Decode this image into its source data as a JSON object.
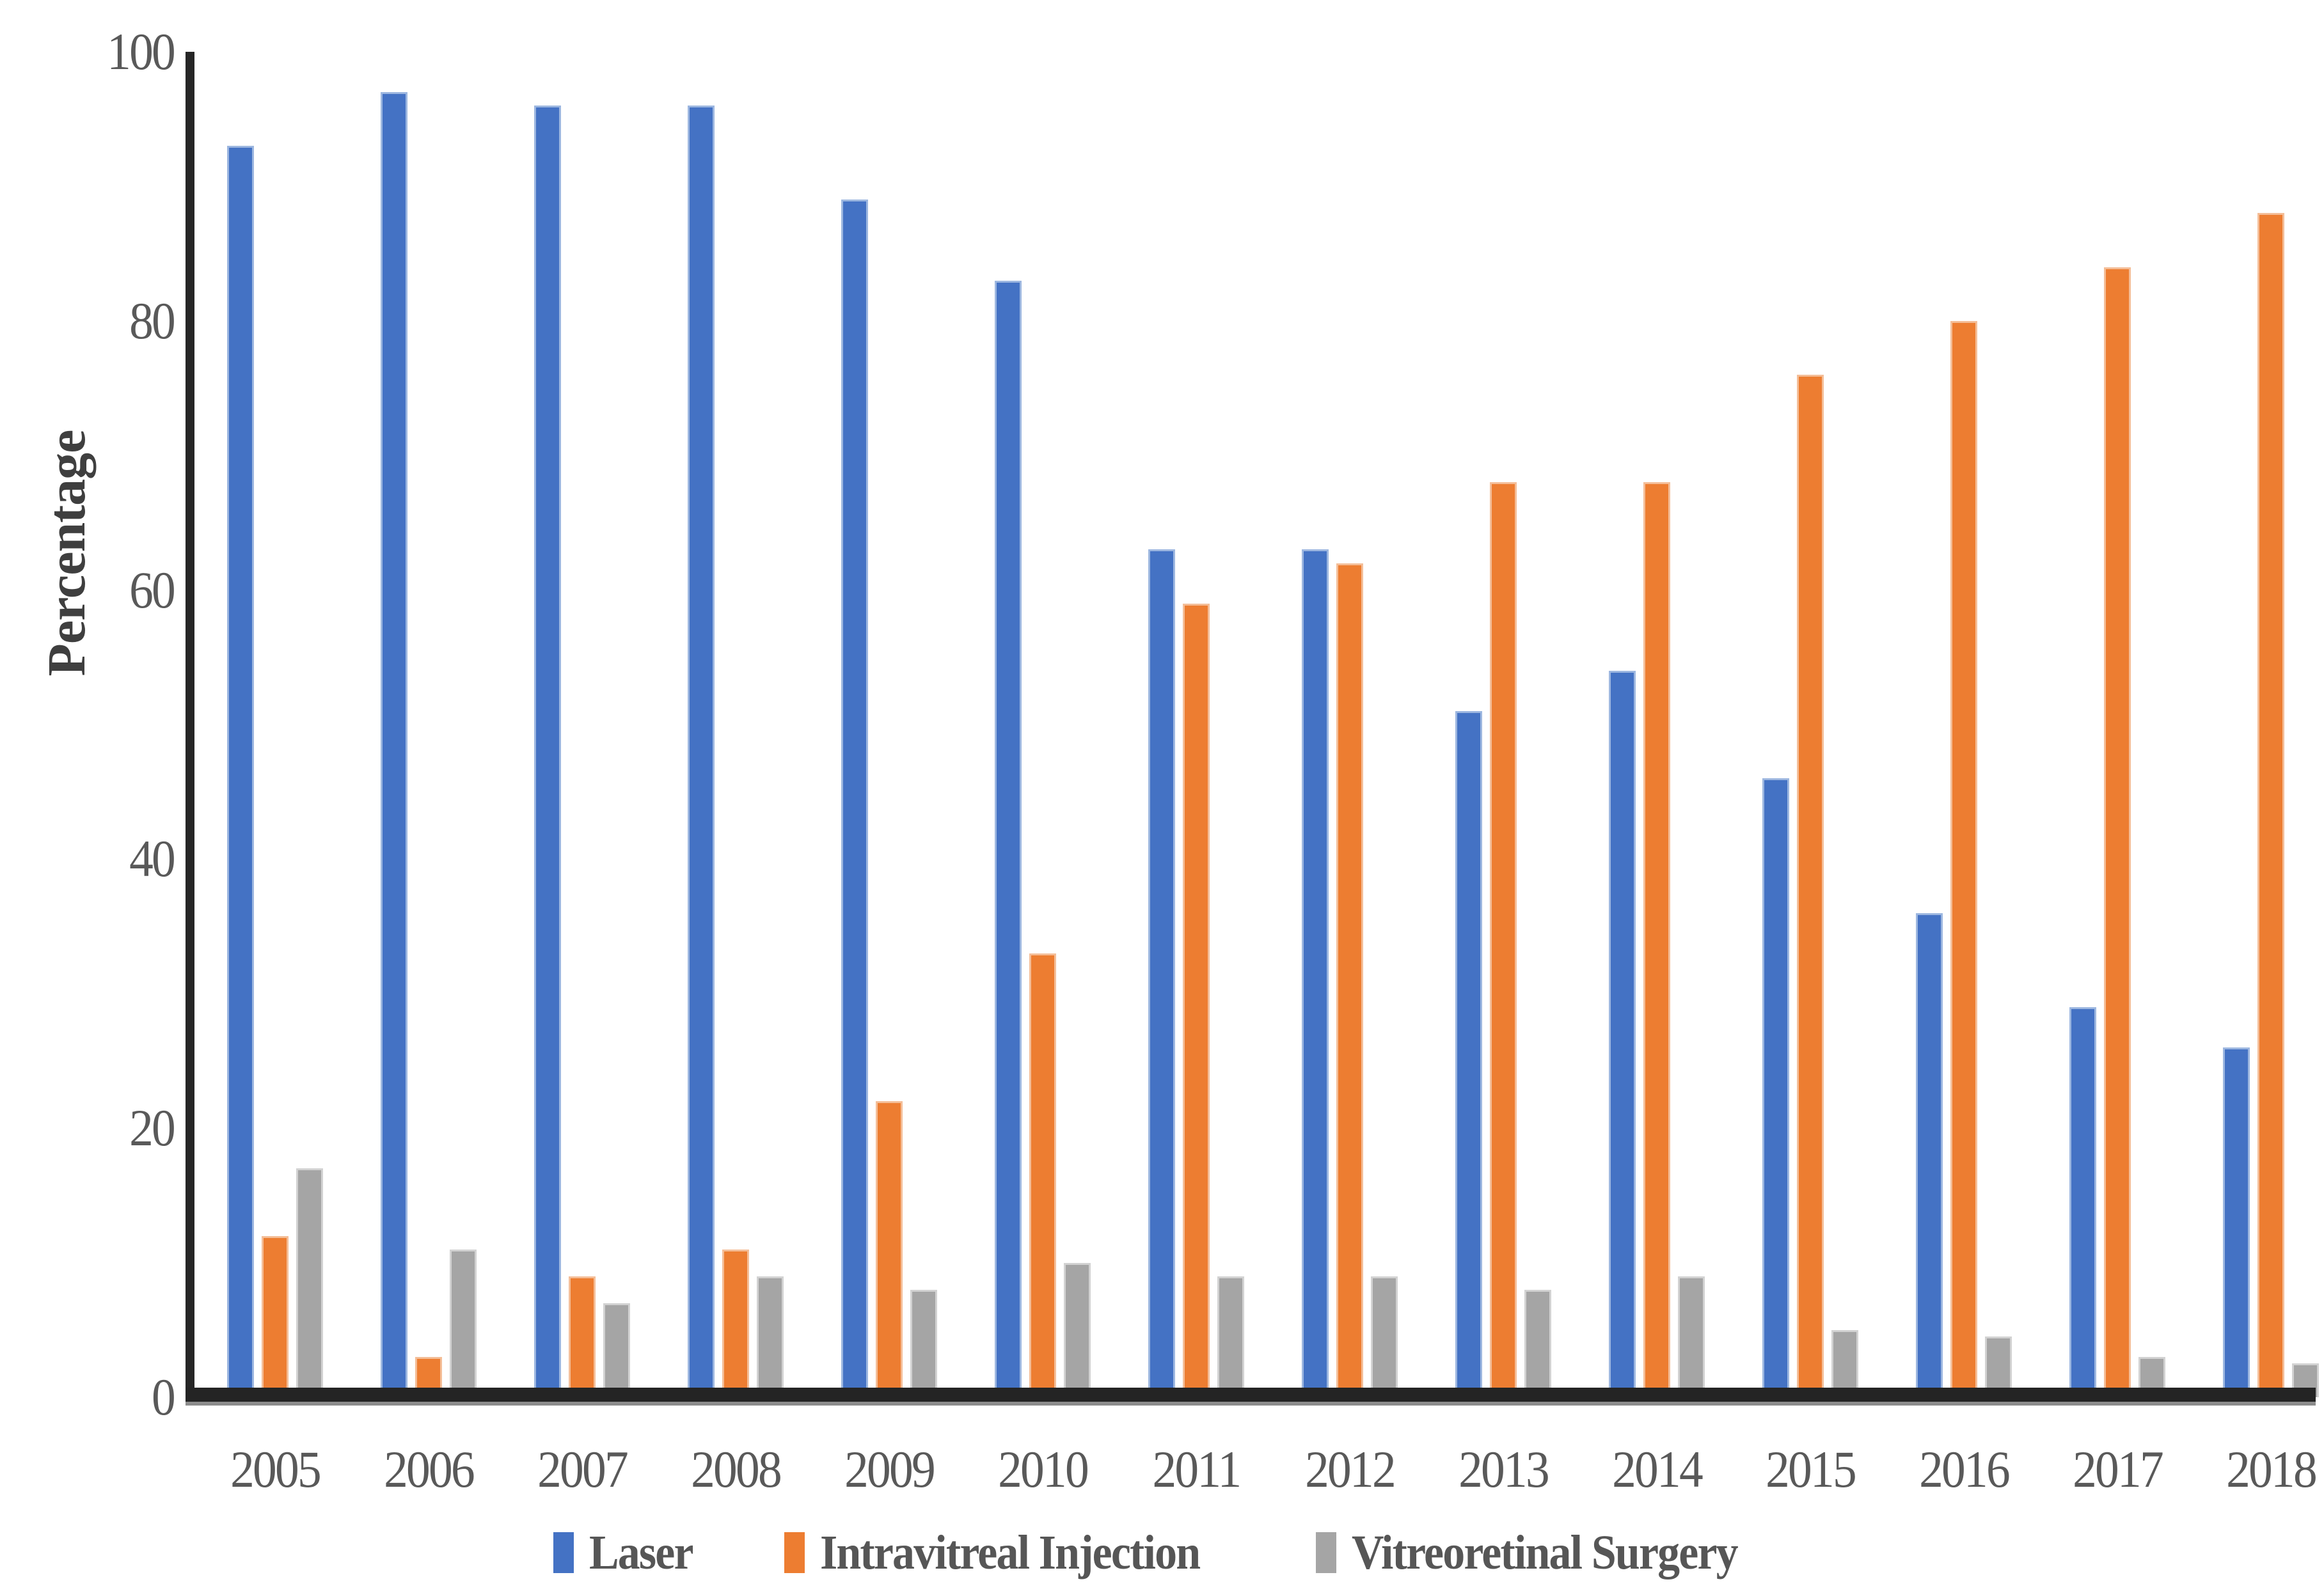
{
  "chart_data": {
    "type": "bar",
    "title": "",
    "xlabel": "",
    "ylabel": "Percentage",
    "categories": [
      "2005",
      "2006",
      "2007",
      "2008",
      "2009",
      "2010",
      "2011",
      "2012",
      "2013",
      "2014",
      "2015",
      "2016",
      "2017",
      "2018"
    ],
    "series": [
      {
        "name": "Laser",
        "color": "#4472C4",
        "edge_color": "#9DB7E0",
        "values": [
          93,
          97,
          96,
          96,
          89,
          83,
          63,
          63,
          51,
          54,
          46,
          36,
          29,
          26
        ]
      },
      {
        "name": "Intravitreal Injection",
        "color": "#ED7D31",
        "edge_color": "#F4BE98",
        "values": [
          12,
          3,
          9,
          11,
          22,
          33,
          59,
          62,
          68,
          68,
          76,
          80,
          84,
          88
        ]
      },
      {
        "name": "Vitreoretinal Surgery",
        "color": "#A5A5A5",
        "edge_color": "#D2D2D2",
        "values": [
          17,
          11,
          7,
          9,
          8,
          10,
          9,
          9,
          8,
          9,
          5,
          4.5,
          3,
          2.5
        ]
      }
    ],
    "ylim": [
      0,
      100
    ],
    "y_ticks": [
      "0",
      "20",
      "40",
      "60",
      "80",
      "100"
    ],
    "grid": false,
    "legend_position": "bottom",
    "axis_color": "#262626",
    "text_color": "#595959"
  }
}
